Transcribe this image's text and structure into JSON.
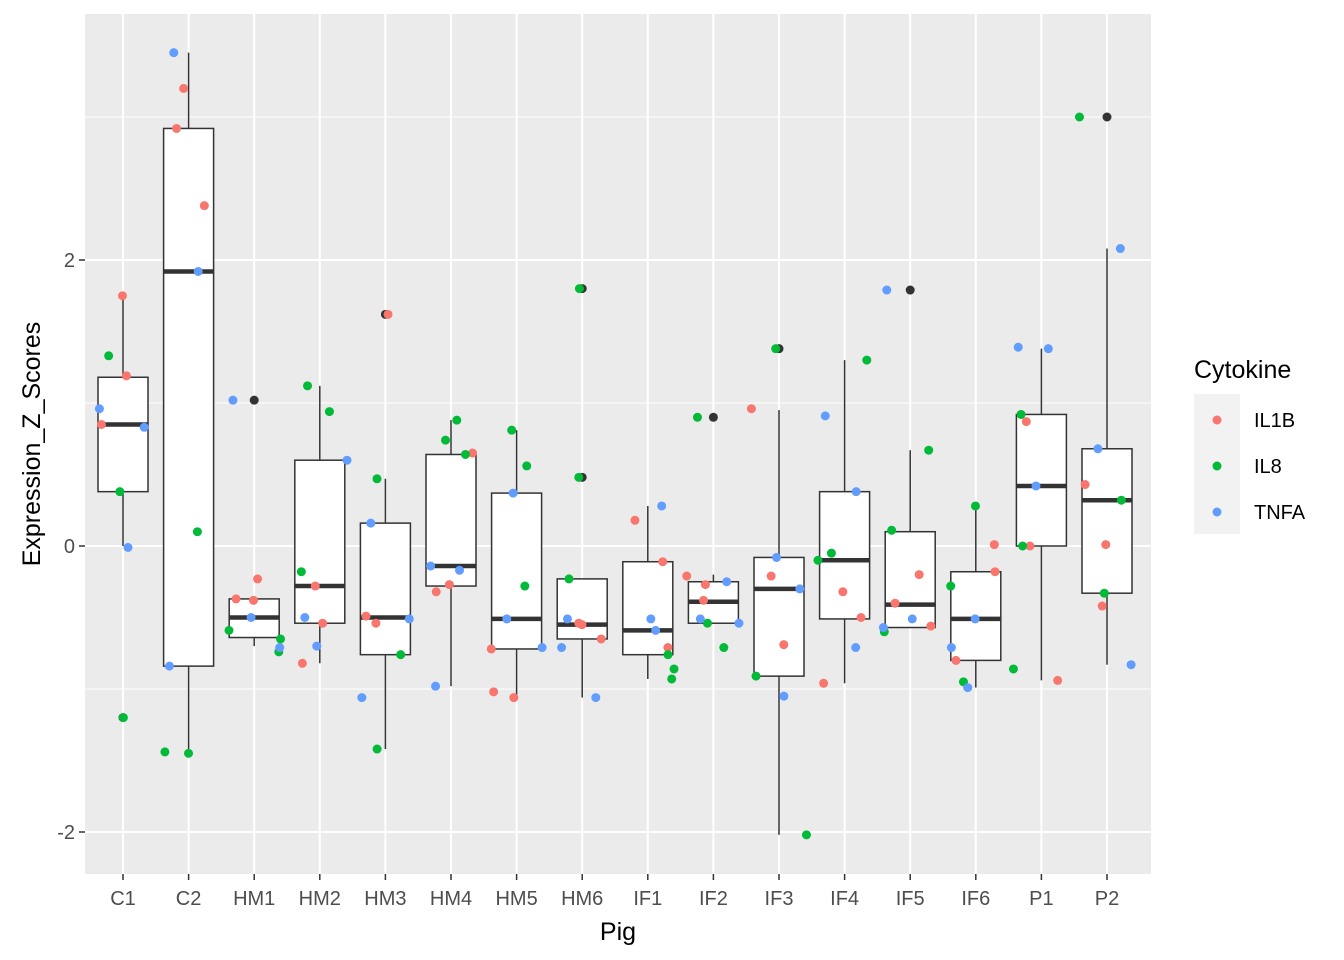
{
  "chart_data": {
    "type": "boxplot",
    "xlabel": "Pig",
    "ylabel": "Expression_Z_Scores",
    "categories": [
      "C1",
      "C2",
      "HM1",
      "HM2",
      "HM3",
      "HM4",
      "HM5",
      "HM6",
      "IF1",
      "IF2",
      "IF3",
      "IF4",
      "IF5",
      "IF6",
      "P1",
      "P2"
    ],
    "y_ticks": [
      -2,
      0,
      2
    ],
    "y_tick_labels": [
      "-2",
      "0",
      "2"
    ],
    "ylim": [
      -2.3,
      3.7
    ],
    "grid": true,
    "legend": {
      "title": "Cytokine",
      "placement": "right",
      "entries": [
        {
          "name": "IL1B",
          "color": "#F8766D"
        },
        {
          "name": "IL8",
          "color": "#00BA38"
        },
        {
          "name": "TNFA",
          "color": "#619CFF"
        }
      ]
    },
    "boxes": [
      {
        "category": "C1",
        "lower_whisker": 0.0,
        "q1": 0.38,
        "median": 0.85,
        "q3": 1.18,
        "upper_whisker": 1.75
      },
      {
        "category": "C2",
        "lower_whisker": -1.45,
        "q1": -0.84,
        "median": 1.92,
        "q3": 2.92,
        "upper_whisker": 3.45
      },
      {
        "category": "HM1",
        "lower_whisker": -0.7,
        "q1": -0.64,
        "median": -0.5,
        "q3": -0.37,
        "upper_whisker": -0.37
      },
      {
        "category": "HM2",
        "lower_whisker": -0.82,
        "q1": -0.54,
        "median": -0.28,
        "q3": 0.6,
        "upper_whisker": 1.12
      },
      {
        "category": "HM3",
        "lower_whisker": -1.42,
        "q1": -0.76,
        "median": -0.5,
        "q3": 0.16,
        "upper_whisker": 0.47
      },
      {
        "category": "HM4",
        "lower_whisker": -0.98,
        "q1": -0.28,
        "median": -0.14,
        "q3": 0.64,
        "upper_whisker": 0.88
      },
      {
        "category": "HM5",
        "lower_whisker": -1.06,
        "q1": -0.72,
        "median": -0.51,
        "q3": 0.37,
        "upper_whisker": 0.81
      },
      {
        "category": "HM6",
        "lower_whisker": -1.06,
        "q1": -0.65,
        "median": -0.55,
        "q3": -0.23,
        "upper_whisker": -0.23
      },
      {
        "category": "IF1",
        "lower_whisker": -0.93,
        "q1": -0.76,
        "median": -0.59,
        "q3": -0.11,
        "upper_whisker": 0.28
      },
      {
        "category": "IF2",
        "lower_whisker": -0.54,
        "q1": -0.54,
        "median": -0.39,
        "q3": -0.25,
        "upper_whisker": -0.2
      },
      {
        "category": "IF3",
        "lower_whisker": -2.02,
        "q1": -0.91,
        "median": -0.3,
        "q3": -0.08,
        "upper_whisker": 0.95
      },
      {
        "category": "IF4",
        "lower_whisker": -0.96,
        "q1": -0.51,
        "median": -0.1,
        "q3": 0.38,
        "upper_whisker": 1.3
      },
      {
        "category": "IF5",
        "lower_whisker": -0.57,
        "q1": -0.57,
        "median": -0.41,
        "q3": 0.1,
        "upper_whisker": 0.67
      },
      {
        "category": "IF6",
        "lower_whisker": -0.99,
        "q1": -0.8,
        "median": -0.51,
        "q3": -0.18,
        "upper_whisker": 0.28
      },
      {
        "category": "P1",
        "lower_whisker": -0.94,
        "q1": 0.0,
        "median": 0.42,
        "q3": 0.92,
        "upper_whisker": 1.38
      },
      {
        "category": "P2",
        "lower_whisker": -0.83,
        "q1": -0.33,
        "median": 0.32,
        "q3": 0.68,
        "upper_whisker": 2.08
      }
    ],
    "outliers": [
      {
        "category": "C1",
        "y": -1.2
      },
      {
        "category": "HM1",
        "y": 1.02
      },
      {
        "category": "HM3",
        "y": 1.62
      },
      {
        "category": "HM6",
        "y": 1.8
      },
      {
        "category": "HM6",
        "y": 0.48
      },
      {
        "category": "IF2",
        "y": 0.9
      },
      {
        "category": "IF3",
        "y": 1.38
      },
      {
        "category": "IF5",
        "y": 1.79
      },
      {
        "category": "P2",
        "y": 3.0
      }
    ],
    "points": [
      {
        "category": "C1",
        "cytokine": "IL1B",
        "y": 1.75
      },
      {
        "category": "C1",
        "cytokine": "IL1B",
        "y": 1.19
      },
      {
        "category": "C1",
        "cytokine": "IL1B",
        "y": 0.85
      },
      {
        "category": "C1",
        "cytokine": "IL8",
        "y": 1.33
      },
      {
        "category": "C1",
        "cytokine": "IL8",
        "y": 0.38
      },
      {
        "category": "C1",
        "cytokine": "IL8",
        "y": -1.2
      },
      {
        "category": "C1",
        "cytokine": "TNFA",
        "y": 0.96
      },
      {
        "category": "C1",
        "cytokine": "TNFA",
        "y": 0.83
      },
      {
        "category": "C1",
        "cytokine": "TNFA",
        "y": -0.01
      },
      {
        "category": "C2",
        "cytokine": "IL1B",
        "y": 3.2
      },
      {
        "category": "C2",
        "cytokine": "IL1B",
        "y": 2.92
      },
      {
        "category": "C2",
        "cytokine": "IL1B",
        "y": 2.38
      },
      {
        "category": "C2",
        "cytokine": "IL8",
        "y": 0.1
      },
      {
        "category": "C2",
        "cytokine": "IL8",
        "y": -1.44
      },
      {
        "category": "C2",
        "cytokine": "IL8",
        "y": -1.45
      },
      {
        "category": "C2",
        "cytokine": "TNFA",
        "y": 3.45
      },
      {
        "category": "C2",
        "cytokine": "TNFA",
        "y": 1.92
      },
      {
        "category": "C2",
        "cytokine": "TNFA",
        "y": -0.84
      },
      {
        "category": "HM1",
        "cytokine": "IL1B",
        "y": -0.23
      },
      {
        "category": "HM1",
        "cytokine": "IL1B",
        "y": -0.38
      },
      {
        "category": "HM1",
        "cytokine": "IL1B",
        "y": -0.37
      },
      {
        "category": "HM1",
        "cytokine": "IL8",
        "y": -0.59
      },
      {
        "category": "HM1",
        "cytokine": "IL8",
        "y": -0.74
      },
      {
        "category": "HM1",
        "cytokine": "IL8",
        "y": -0.65
      },
      {
        "category": "HM1",
        "cytokine": "TNFA",
        "y": 1.02
      },
      {
        "category": "HM1",
        "cytokine": "TNFA",
        "y": -0.5
      },
      {
        "category": "HM1",
        "cytokine": "TNFA",
        "y": -0.71
      },
      {
        "category": "HM2",
        "cytokine": "IL1B",
        "y": -0.82
      },
      {
        "category": "HM2",
        "cytokine": "IL1B",
        "y": -0.28
      },
      {
        "category": "HM2",
        "cytokine": "IL1B",
        "y": -0.54
      },
      {
        "category": "HM2",
        "cytokine": "IL8",
        "y": 0.94
      },
      {
        "category": "HM2",
        "cytokine": "IL8",
        "y": 1.12
      },
      {
        "category": "HM2",
        "cytokine": "IL8",
        "y": -0.18
      },
      {
        "category": "HM2",
        "cytokine": "TNFA",
        "y": 0.6
      },
      {
        "category": "HM2",
        "cytokine": "TNFA",
        "y": -0.7
      },
      {
        "category": "HM2",
        "cytokine": "TNFA",
        "y": -0.5
      },
      {
        "category": "HM3",
        "cytokine": "IL1B",
        "y": 1.62
      },
      {
        "category": "HM3",
        "cytokine": "IL1B",
        "y": -0.54
      },
      {
        "category": "HM3",
        "cytokine": "IL1B",
        "y": -0.49
      },
      {
        "category": "HM3",
        "cytokine": "IL8",
        "y": -0.76
      },
      {
        "category": "HM3",
        "cytokine": "IL8",
        "y": -1.42
      },
      {
        "category": "HM3",
        "cytokine": "IL8",
        "y": 0.47
      },
      {
        "category": "HM3",
        "cytokine": "TNFA",
        "y": -1.06
      },
      {
        "category": "HM3",
        "cytokine": "TNFA",
        "y": -0.51
      },
      {
        "category": "HM3",
        "cytokine": "TNFA",
        "y": 0.16
      },
      {
        "category": "HM4",
        "cytokine": "IL1B",
        "y": 0.65
      },
      {
        "category": "HM4",
        "cytokine": "IL1B",
        "y": -0.27
      },
      {
        "category": "HM4",
        "cytokine": "IL1B",
        "y": -0.32
      },
      {
        "category": "HM4",
        "cytokine": "IL8",
        "y": 0.88
      },
      {
        "category": "HM4",
        "cytokine": "IL8",
        "y": 0.74
      },
      {
        "category": "HM4",
        "cytokine": "IL8",
        "y": 0.64
      },
      {
        "category": "HM4",
        "cytokine": "TNFA",
        "y": -0.17
      },
      {
        "category": "HM4",
        "cytokine": "TNFA",
        "y": -0.14
      },
      {
        "category": "HM4",
        "cytokine": "TNFA",
        "y": -0.98
      },
      {
        "category": "HM5",
        "cytokine": "IL1B",
        "y": -1.06
      },
      {
        "category": "HM5",
        "cytokine": "IL1B",
        "y": -1.02
      },
      {
        "category": "HM5",
        "cytokine": "IL1B",
        "y": -0.72
      },
      {
        "category": "HM5",
        "cytokine": "IL8",
        "y": 0.81
      },
      {
        "category": "HM5",
        "cytokine": "IL8",
        "y": 0.56
      },
      {
        "category": "HM5",
        "cytokine": "IL8",
        "y": -0.28
      },
      {
        "category": "HM5",
        "cytokine": "TNFA",
        "y": -0.71
      },
      {
        "category": "HM5",
        "cytokine": "TNFA",
        "y": -0.51
      },
      {
        "category": "HM5",
        "cytokine": "TNFA",
        "y": 0.37
      },
      {
        "category": "HM6",
        "cytokine": "IL1B",
        "y": -0.55
      },
      {
        "category": "HM6",
        "cytokine": "IL1B",
        "y": -0.54
      },
      {
        "category": "HM6",
        "cytokine": "IL1B",
        "y": -0.65
      },
      {
        "category": "HM6",
        "cytokine": "IL8",
        "y": 1.8
      },
      {
        "category": "HM6",
        "cytokine": "IL8",
        "y": 0.48
      },
      {
        "category": "HM6",
        "cytokine": "IL8",
        "y": -0.23
      },
      {
        "category": "HM6",
        "cytokine": "TNFA",
        "y": -0.51
      },
      {
        "category": "HM6",
        "cytokine": "TNFA",
        "y": -1.06
      },
      {
        "category": "HM6",
        "cytokine": "TNFA",
        "y": -0.71
      },
      {
        "category": "IF1",
        "cytokine": "IL1B",
        "y": 0.18
      },
      {
        "category": "IF1",
        "cytokine": "IL1B",
        "y": -0.11
      },
      {
        "category": "IF1",
        "cytokine": "IL1B",
        "y": -0.71
      },
      {
        "category": "IF1",
        "cytokine": "IL8",
        "y": -0.86
      },
      {
        "category": "IF1",
        "cytokine": "IL8",
        "y": -0.93
      },
      {
        "category": "IF1",
        "cytokine": "IL8",
        "y": -0.76
      },
      {
        "category": "IF1",
        "cytokine": "TNFA",
        "y": 0.28
      },
      {
        "category": "IF1",
        "cytokine": "TNFA",
        "y": -0.59
      },
      {
        "category": "IF1",
        "cytokine": "TNFA",
        "y": -0.51
      },
      {
        "category": "IF2",
        "cytokine": "IL1B",
        "y": -0.21
      },
      {
        "category": "IF2",
        "cytokine": "IL1B",
        "y": -0.38
      },
      {
        "category": "IF2",
        "cytokine": "IL1B",
        "y": -0.27
      },
      {
        "category": "IF2",
        "cytokine": "IL8",
        "y": 0.9
      },
      {
        "category": "IF2",
        "cytokine": "IL8",
        "y": -0.54
      },
      {
        "category": "IF2",
        "cytokine": "IL8",
        "y": -0.71
      },
      {
        "category": "IF2",
        "cytokine": "TNFA",
        "y": -0.25
      },
      {
        "category": "IF2",
        "cytokine": "TNFA",
        "y": -0.51
      },
      {
        "category": "IF2",
        "cytokine": "TNFA",
        "y": -0.54
      },
      {
        "category": "IF3",
        "cytokine": "IL1B",
        "y": 0.96
      },
      {
        "category": "IF3",
        "cytokine": "IL1B",
        "y": -0.21
      },
      {
        "category": "IF3",
        "cytokine": "IL1B",
        "y": -0.69
      },
      {
        "category": "IF3",
        "cytokine": "IL8",
        "y": 1.38
      },
      {
        "category": "IF3",
        "cytokine": "IL8",
        "y": -0.91
      },
      {
        "category": "IF3",
        "cytokine": "IL8",
        "y": -2.02
      },
      {
        "category": "IF3",
        "cytokine": "TNFA",
        "y": -0.08
      },
      {
        "category": "IF3",
        "cytokine": "TNFA",
        "y": -0.3
      },
      {
        "category": "IF3",
        "cytokine": "TNFA",
        "y": -1.05
      },
      {
        "category": "IF4",
        "cytokine": "IL1B",
        "y": -0.32
      },
      {
        "category": "IF4",
        "cytokine": "IL1B",
        "y": -0.96
      },
      {
        "category": "IF4",
        "cytokine": "IL1B",
        "y": -0.5
      },
      {
        "category": "IF4",
        "cytokine": "IL8",
        "y": 1.3
      },
      {
        "category": "IF4",
        "cytokine": "IL8",
        "y": -0.05
      },
      {
        "category": "IF4",
        "cytokine": "IL8",
        "y": -0.1
      },
      {
        "category": "IF4",
        "cytokine": "TNFA",
        "y": 0.91
      },
      {
        "category": "IF4",
        "cytokine": "TNFA",
        "y": 0.38
      },
      {
        "category": "IF4",
        "cytokine": "TNFA",
        "y": -0.71
      },
      {
        "category": "IF5",
        "cytokine": "IL1B",
        "y": -0.2
      },
      {
        "category": "IF5",
        "cytokine": "IL1B",
        "y": -0.56
      },
      {
        "category": "IF5",
        "cytokine": "IL1B",
        "y": -0.4
      },
      {
        "category": "IF5",
        "cytokine": "IL8",
        "y": 0.67
      },
      {
        "category": "IF5",
        "cytokine": "IL8",
        "y": 0.11
      },
      {
        "category": "IF5",
        "cytokine": "IL8",
        "y": -0.6
      },
      {
        "category": "IF5",
        "cytokine": "TNFA",
        "y": 1.79
      },
      {
        "category": "IF5",
        "cytokine": "TNFA",
        "y": -0.57
      },
      {
        "category": "IF5",
        "cytokine": "TNFA",
        "y": -0.51
      },
      {
        "category": "IF6",
        "cytokine": "IL1B",
        "y": 0.01
      },
      {
        "category": "IF6",
        "cytokine": "IL1B",
        "y": -0.18
      },
      {
        "category": "IF6",
        "cytokine": "IL1B",
        "y": -0.8
      },
      {
        "category": "IF6",
        "cytokine": "IL8",
        "y": 0.28
      },
      {
        "category": "IF6",
        "cytokine": "IL8",
        "y": -0.28
      },
      {
        "category": "IF6",
        "cytokine": "IL8",
        "y": -0.95
      },
      {
        "category": "IF6",
        "cytokine": "TNFA",
        "y": -0.51
      },
      {
        "category": "IF6",
        "cytokine": "TNFA",
        "y": -0.71
      },
      {
        "category": "IF6",
        "cytokine": "TNFA",
        "y": -0.99
      },
      {
        "category": "P1",
        "cytokine": "IL1B",
        "y": 0.87
      },
      {
        "category": "P1",
        "cytokine": "IL1B",
        "y": 0.0
      },
      {
        "category": "P1",
        "cytokine": "IL1B",
        "y": -0.94
      },
      {
        "category": "P1",
        "cytokine": "IL8",
        "y": 0.92
      },
      {
        "category": "P1",
        "cytokine": "IL8",
        "y": 0.0
      },
      {
        "category": "P1",
        "cytokine": "IL8",
        "y": -0.86
      },
      {
        "category": "P1",
        "cytokine": "TNFA",
        "y": 1.38
      },
      {
        "category": "P1",
        "cytokine": "TNFA",
        "y": 1.39
      },
      {
        "category": "P1",
        "cytokine": "TNFA",
        "y": 0.42
      },
      {
        "category": "P2",
        "cytokine": "IL1B",
        "y": 0.43
      },
      {
        "category": "P2",
        "cytokine": "IL1B",
        "y": 0.01
      },
      {
        "category": "P2",
        "cytokine": "IL1B",
        "y": -0.42
      },
      {
        "category": "P2",
        "cytokine": "IL8",
        "y": 3.0
      },
      {
        "category": "P2",
        "cytokine": "IL8",
        "y": 0.32
      },
      {
        "category": "P2",
        "cytokine": "IL8",
        "y": -0.33
      },
      {
        "category": "P2",
        "cytokine": "TNFA",
        "y": 2.08
      },
      {
        "category": "P2",
        "cytokine": "TNFA",
        "y": 0.68
      },
      {
        "category": "P2",
        "cytokine": "TNFA",
        "y": -0.83
      }
    ]
  }
}
